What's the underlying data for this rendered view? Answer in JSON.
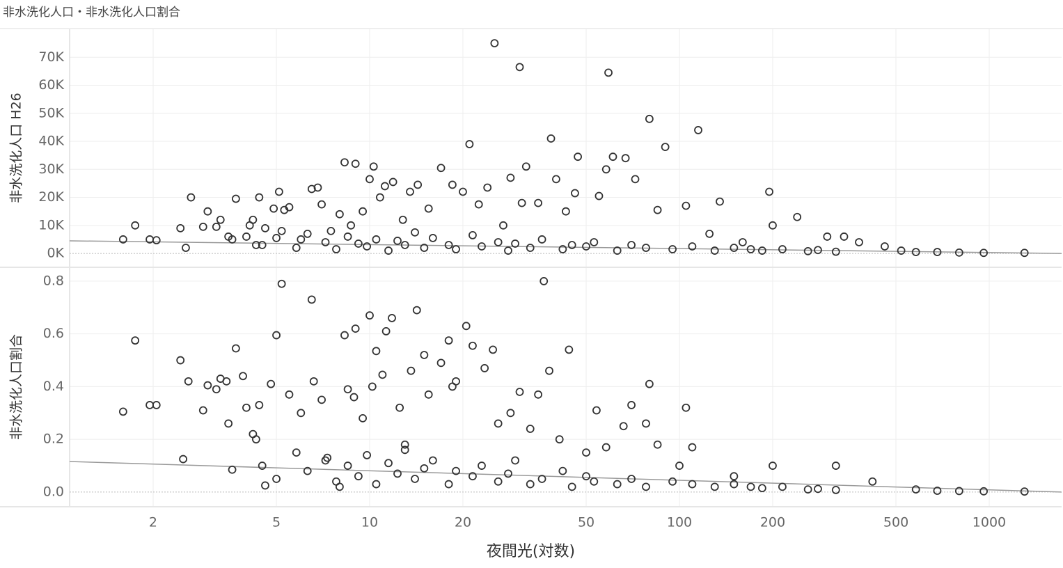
{
  "title": "非水洗化人口・非水洗化人口割合",
  "chart_data": [
    {
      "type": "scatter",
      "y_axis_label": "非水洗化人口 H26",
      "xscale": "log",
      "grid": true,
      "color": "#333333",
      "xlim": [
        1.075,
        1713
      ],
      "ylim": [
        -4700,
        80000
      ],
      "yticks": [
        {
          "value": 0,
          "label": "0K"
        },
        {
          "value": 10000,
          "label": "10K"
        },
        {
          "value": 20000,
          "label": "20K"
        },
        {
          "value": 30000,
          "label": "30K"
        },
        {
          "value": 40000,
          "label": "40K"
        },
        {
          "value": 50000,
          "label": "50K"
        },
        {
          "value": 60000,
          "label": "60K"
        },
        {
          "value": 70000,
          "label": "70K"
        }
      ],
      "x": [
        1.6,
        1.75,
        1.95,
        2.05,
        2.45,
        2.55,
        2.65,
        2.9,
        3.0,
        3.2,
        3.3,
        3.5,
        3.6,
        3.7,
        4.0,
        4.1,
        4.2,
        4.4,
        4.5,
        4.6,
        4.9,
        5.1,
        5.3,
        5.5,
        5.2,
        6.0,
        6.5,
        6.8,
        7.0,
        7.5,
        8.0,
        8.3,
        8.7,
        9.0,
        9.5,
        10.0,
        10.3,
        10.8,
        11.2,
        11.9,
        12.8,
        13.5,
        14.3,
        15.5,
        17.0,
        18.5,
        20.0,
        21.0,
        22.5,
        24.0,
        25.3,
        27.0,
        28.5,
        30.5,
        31.0,
        32.0,
        35.0,
        38.5,
        40.0,
        43,
        46,
        47,
        55,
        58,
        59,
        61,
        67,
        72,
        80,
        85,
        90,
        105,
        115,
        125,
        135,
        160,
        195,
        200,
        240,
        300,
        340,
        380,
        460,
        520,
        580,
        680,
        800,
        960,
        1300,
        4.3,
        5,
        5.8,
        6.3,
        7.2,
        7.8,
        8.5,
        9.2,
        9.8,
        10.5,
        11.5,
        12.3,
        13,
        14,
        15,
        16,
        18,
        19,
        21.5,
        23,
        26,
        28,
        29.5,
        33,
        36,
        42,
        45,
        50,
        53,
        63,
        70,
        78,
        95,
        110,
        130,
        150,
        170,
        185,
        215,
        260,
        280,
        320
      ],
      "values": [
        5000,
        10000,
        5000,
        4700,
        9000,
        2000,
        20000,
        9500,
        15000,
        9500,
        12000,
        6000,
        5000,
        19500,
        6000,
        10000,
        12000,
        20000,
        3000,
        9000,
        16000,
        22000,
        15500,
        16500,
        8000,
        5000,
        23000,
        23500,
        17500,
        8000,
        14000,
        32500,
        10000,
        32000,
        15000,
        26500,
        31000,
        20000,
        24000,
        25500,
        12000,
        22000,
        24500,
        16000,
        30500,
        24500,
        22000,
        39000,
        17500,
        23500,
        75000,
        10000,
        27000,
        66500,
        18000,
        31000,
        18000,
        41000,
        26500,
        15000,
        21500,
        34500,
        20500,
        30000,
        64500,
        34500,
        34000,
        26500,
        48000,
        15500,
        38000,
        17000,
        44000,
        7000,
        18500,
        4000,
        22000,
        10000,
        13000,
        6000,
        6000,
        4000,
        2500,
        1000,
        500,
        500,
        300,
        200,
        200,
        3000,
        5500,
        2000,
        7000,
        4000,
        1500,
        6000,
        3500,
        2500,
        5000,
        1000,
        4500,
        3000,
        7500,
        2000,
        5500,
        3000,
        1500,
        6500,
        2500,
        4000,
        1000,
        3500,
        2000,
        5000,
        1500,
        3000,
        2500,
        4000,
        1000,
        3000,
        2000,
        1500,
        2500,
        1000,
        2000,
        1500,
        1000,
        1500,
        800,
        1200,
        600
      ],
      "trend_line": {
        "color": "#999999",
        "x": [
          1.075,
          1713
        ],
        "values": [
          4500,
          0
        ]
      }
    },
    {
      "type": "scatter",
      "y_axis_label": "非水洗化人口割合",
      "x_axis_label": "夜間光(対数)",
      "xscale": "log",
      "grid": true,
      "color": "#333333",
      "xlim": [
        1.075,
        1713
      ],
      "ylim": [
        -0.053,
        0.85
      ],
      "xticks": [
        2,
        5,
        10,
        20,
        50,
        100,
        200,
        500,
        1000
      ],
      "yticks": [
        {
          "value": 0,
          "label": "0.0"
        },
        0.2,
        0.4,
        0.6,
        0.8
      ],
      "x": [
        1.6,
        1.75,
        1.95,
        2.05,
        2.45,
        2.5,
        2.6,
        2.9,
        3.0,
        3.2,
        3.3,
        3.45,
        3.5,
        3.6,
        3.7,
        3.9,
        4.0,
        4.2,
        4.4,
        4.5,
        4.6,
        4.8,
        5.0,
        5.2,
        5.5,
        6.0,
        6.5,
        6.6,
        7.0,
        7.3,
        8.0,
        8.3,
        8.5,
        8.9,
        9.0,
        9.5,
        10.0,
        10.2,
        10.5,
        11.0,
        11.3,
        11.8,
        12.5,
        13.0,
        13.6,
        14.2,
        15.0,
        15.5,
        17.0,
        18.0,
        18.5,
        19.0,
        20.5,
        21.5,
        23.5,
        25,
        26,
        28.5,
        30.5,
        33,
        35,
        36.5,
        38,
        41,
        44,
        50,
        54,
        58,
        66,
        70,
        78,
        80,
        85,
        100,
        105,
        110,
        150,
        200,
        320,
        420,
        580,
        680,
        800,
        960,
        1300,
        4.3,
        5,
        5.8,
        6.3,
        7.2,
        7.8,
        8.5,
        9.2,
        9.8,
        10.5,
        11.5,
        12.3,
        13,
        14,
        15,
        16,
        18,
        19,
        21.5,
        23,
        26,
        28,
        29.5,
        33,
        36,
        42,
        45,
        50,
        53,
        63,
        70,
        78,
        95,
        110,
        130,
        150,
        170,
        185,
        215,
        260,
        280,
        320
      ],
      "values": [
        0.305,
        0.575,
        0.33,
        0.33,
        0.5,
        0.125,
        0.42,
        0.31,
        0.405,
        0.39,
        0.43,
        0.42,
        0.26,
        0.085,
        0.545,
        0.44,
        0.32,
        0.22,
        0.33,
        0.1,
        0.025,
        0.41,
        0.595,
        0.79,
        0.37,
        0.3,
        0.73,
        0.42,
        0.35,
        0.13,
        0.02,
        0.595,
        0.39,
        0.36,
        0.62,
        0.28,
        0.67,
        0.4,
        0.535,
        0.445,
        0.61,
        0.66,
        0.32,
        0.18,
        0.46,
        0.69,
        0.52,
        0.37,
        0.49,
        0.575,
        0.4,
        0.42,
        0.63,
        0.555,
        0.47,
        0.54,
        0.26,
        0.3,
        0.38,
        0.24,
        0.37,
        0.8,
        0.46,
        0.2,
        0.54,
        0.15,
        0.31,
        0.17,
        0.25,
        0.33,
        0.26,
        0.41,
        0.18,
        0.1,
        0.32,
        0.17,
        0.06,
        0.1,
        0.1,
        0.04,
        0.01,
        0.005,
        0.004,
        0.003,
        0.002,
        0.2,
        0.05,
        0.15,
        0.08,
        0.12,
        0.04,
        0.1,
        0.06,
        0.14,
        0.03,
        0.11,
        0.07,
        0.16,
        0.05,
        0.09,
        0.12,
        0.03,
        0.08,
        0.06,
        0.1,
        0.04,
        0.07,
        0.12,
        0.03,
        0.05,
        0.08,
        0.02,
        0.06,
        0.04,
        0.03,
        0.05,
        0.02,
        0.04,
        0.03,
        0.02,
        0.03,
        0.02,
        0.015,
        0.02,
        0.01,
        0.012,
        0.008
      ],
      "trend_line": {
        "color": "#999999",
        "x": [
          1.075,
          1713
        ],
        "values": [
          0.116,
          0
        ]
      }
    }
  ]
}
